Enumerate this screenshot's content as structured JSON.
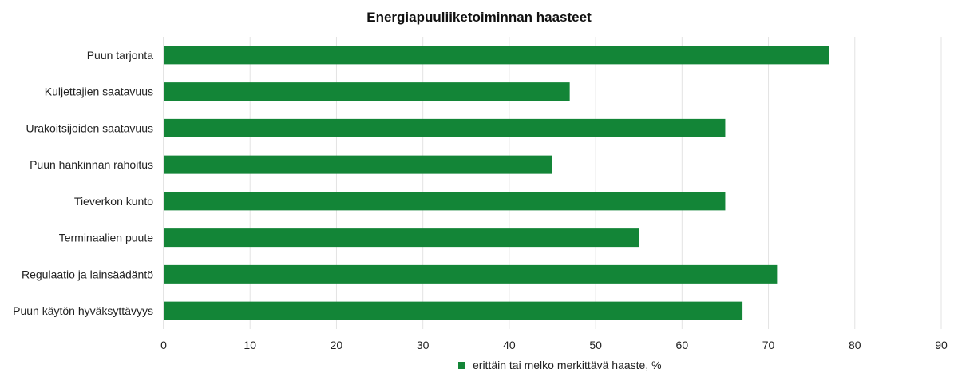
{
  "chart_data": {
    "type": "bar",
    "orientation": "horizontal",
    "title": "Energiapuuliiketoiminnan haasteet",
    "categories": [
      "Puun tarjonta",
      "Kuljettajien saatavuus",
      "Urakoitsijoiden saatavuus",
      "Puun hankinnan rahoitus",
      "Tieverkon kunto",
      "Terminaalien puute",
      "Regulaatio ja lainsäädäntö",
      "Puun käytön hyväksyttävyys"
    ],
    "series": [
      {
        "name": "erittäin tai melko merkittävä haaste, %",
        "values": [
          77,
          47,
          65,
          45,
          65,
          55,
          71,
          67
        ],
        "color": "#138537"
      }
    ],
    "xlim": [
      0,
      90
    ],
    "xticks": [
      "0",
      "10",
      "20",
      "30",
      "40",
      "50",
      "60",
      "70",
      "80",
      "90"
    ],
    "grid": true,
    "legend_position": "bottom-center"
  }
}
